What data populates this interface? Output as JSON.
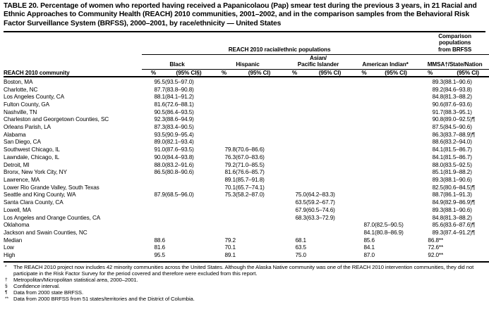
{
  "title": "TABLE 20. Percentage of women who reported having received a Papanicolaou (Pap) smear test during the previous 3 years, in 21 Racial and Ethnic Approaches to Community Health (REACH) 2010 communities, 2001–2002, and in the comparison samples from the Behavioral Risk Factor Surveillance System (BRFSS), 2000–2001, by race/ethnicity — United States",
  "table": {
    "reach_span_header": "REACH 2010 racial/ethnic populations",
    "comparison_span_header": "Comparison\npopulations\nfrom BRFSS",
    "community_header": "REACH 2010 community",
    "column_groups": [
      {
        "label": "Black",
        "pct": "%",
        "ci": "(95% CI§)"
      },
      {
        "label": "Hispanic",
        "pct": "%",
        "ci": "(95% CI)"
      },
      {
        "label": "Asian/\nPacific Islander",
        "pct": "%",
        "ci": "(95% CI)"
      },
      {
        "label": "American Indian*",
        "pct": "%",
        "ci": "(95% CI)"
      },
      {
        "label": "MMSA†/State/Nation",
        "pct": "%",
        "ci": "(95% CI)"
      }
    ],
    "rows": [
      [
        "Boston, MA",
        "95.5",
        "(93.5–97.0)",
        "",
        "",
        "",
        "",
        "",
        "",
        "89.3",
        "(88.1–90.6)"
      ],
      [
        "Charlotte, NC",
        "87.7",
        "(83.8–90.8)",
        "",
        "",
        "",
        "",
        "",
        "",
        "89.2",
        "(84.6–93.8)"
      ],
      [
        "Los Angeles County, CA",
        "88.1",
        "(84.1–91.2)",
        "",
        "",
        "",
        "",
        "",
        "",
        "84.8",
        "(81.3–88.2)"
      ],
      [
        "Fulton County, GA",
        "81.6",
        "(72.6–88.1)",
        "",
        "",
        "",
        "",
        "",
        "",
        "90.6",
        "(87.6–93.6)"
      ],
      [
        "Nashville, TN",
        "90.5",
        "(86.4–93.5)",
        "",
        "",
        "",
        "",
        "",
        "",
        "91.7",
        "(88.3–95.1)"
      ],
      [
        "Charleston and Georgetown Counties, SC",
        "92.3",
        "(88.6–94.9)",
        "",
        "",
        "",
        "",
        "",
        "",
        "90.8",
        "(89.0–92.5)¶"
      ],
      [
        "Orleans Parish, LA",
        "87.3",
        "(83.4–90.5)",
        "",
        "",
        "",
        "",
        "",
        "",
        "87.5",
        "(84.5–90.6)"
      ],
      [
        "Alabama",
        "93.5",
        "(90.9–95.4)",
        "",
        "",
        "",
        "",
        "",
        "",
        "86.3",
        "(83.7–88.9)¶"
      ],
      [
        "San Diego, CA",
        "89.0",
        "(82.1–93.4)",
        "",
        "",
        "",
        "",
        "",
        "",
        "88.6",
        "(83.2–94.0)"
      ],
      [
        "Southwest Chicago, IL",
        "91.0",
        "(87.6–93.5)",
        "79.8",
        "(70.6–86.6)",
        "",
        "",
        "",
        "",
        "84.1",
        "(81.5–86.7)"
      ],
      [
        "Lawndale, Chicago, IL",
        "90.0",
        "(84.4–93.8)",
        "76.3",
        "(67.0–83.6)",
        "",
        "",
        "",
        "",
        "84.1",
        "(81.5–86.7)"
      ],
      [
        "Detroit, MI",
        "88.0",
        "(83.2–91.6)",
        "79.2",
        "(71.0–85.5)",
        "",
        "",
        "",
        "",
        "88.0",
        "(83.5–92.5)"
      ],
      [
        "Bronx, New York City, NY",
        "86.5",
        "(80.8–90.6)",
        "81.6",
        "(76.6–85.7)",
        "",
        "",
        "",
        "",
        "85.1",
        "(81.9–88.2)"
      ],
      [
        "Lawrence, MA",
        "",
        "",
        "89.1",
        "(85.7–91.8)",
        "",
        "",
        "",
        "",
        "89.3",
        "(88.1–90.6)"
      ],
      [
        "Lower Rio Grande Valley, South Texas",
        "",
        "",
        "70.1",
        "(65.7–74.1)",
        "",
        "",
        "",
        "",
        "82.5",
        "(80.6–84.5)¶"
      ],
      [
        "Seattle and King County, WA",
        "87.9",
        "(68.5–96.0)",
        "75.3",
        "(58.2–87.0)",
        "75.0",
        "(64.2–83.3)",
        "",
        "",
        "88.7",
        "(86.1–91.3)"
      ],
      [
        "Santa Clara County, CA",
        "",
        "",
        "",
        "",
        "63.5",
        "(59.2–67.7)",
        "",
        "",
        "84.9",
        "(82.9–86.9)¶"
      ],
      [
        "Lowell, MA",
        "",
        "",
        "",
        "",
        "67.9",
        "(60.5–74.6)",
        "",
        "",
        "89.3",
        "(88.1–90.6)"
      ],
      [
        "Los Angeles and Orange Counties, CA",
        "",
        "",
        "",
        "",
        "68.3",
        "(63.3–72.9)",
        "",
        "",
        "84.8",
        "(81.3–88.2)"
      ],
      [
        "Oklahoma",
        "",
        "",
        "",
        "",
        "",
        "",
        "87.0",
        "(82.5–90.5)",
        "85.6",
        "(83.6–87.6)¶"
      ],
      [
        "Jackson and Swain Counties, NC",
        "",
        "",
        "",
        "",
        "",
        "",
        "84.1",
        "(80.8–86.9)",
        "89.3",
        "(87.4–91.2)¶"
      ],
      [
        "Median",
        "88.6",
        "",
        "79.2",
        "",
        "68.1",
        "",
        "85.6",
        "",
        "86.8**",
        ""
      ],
      [
        "Low",
        "81.6",
        "",
        "70.1",
        "",
        "63.5",
        "",
        "84.1",
        "",
        "72.6**",
        ""
      ],
      [
        "High",
        "95.5",
        "",
        "89.1",
        "",
        "75.0",
        "",
        "87.0",
        "",
        "92.0**",
        ""
      ]
    ]
  },
  "footnotes": [
    {
      "marker": "*",
      "text": "The REACH 2010 project now includes 42 minority communities across the United States. Although the Alaska Native community was one of the REACH 2010 intervention communities, they did not participate in the Risk Factor Survey for the period covered and therefore were excluded from this report."
    },
    {
      "marker": "†",
      "text": "Metropolitan/Micropolitan statistical area, 2000–2001."
    },
    {
      "marker": "§",
      "text": "Confidence interval."
    },
    {
      "marker": "¶",
      "text": "Data from 2000 state BRFSS."
    },
    {
      "marker": "**",
      "text": "Data from 2000 BRFSS from 51 states/territories and the District of Columbia."
    }
  ]
}
